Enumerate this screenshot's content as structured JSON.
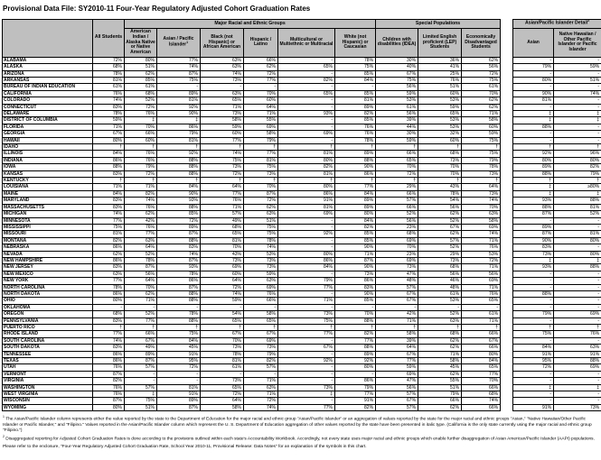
{
  "title": "Provisional Data File: SY2010-11 Four-Year Regulatory Adjusted Cohort Graduation Rates",
  "colors": {
    "header_bg": "#bfbfbf",
    "border": "#000000"
  },
  "table": {
    "all_students_label": "All Students",
    "group_headers": {
      "racial": "Major Racial and Ethnic Groups",
      "special": "Special Populations",
      "detail": "Asian/Pacific Islander Detail",
      "detail_sup": "2"
    },
    "columns": [
      {
        "key": "all",
        "label": "All Students"
      },
      {
        "key": "amind",
        "label": "American Indian / Alaska Native or Native American"
      },
      {
        "key": "asianpi",
        "label": "Asian / Pacific Islander",
        "sup": "1"
      },
      {
        "key": "black",
        "label": "Black (not Hispanic) or African American"
      },
      {
        "key": "hispanic",
        "label": "Hispanic / Latino"
      },
      {
        "key": "multi",
        "label": "Multicultural or Multiethnic or Multiracial"
      },
      {
        "key": "white",
        "label": "White (not Hispanic) or Caucasian"
      },
      {
        "key": "idea",
        "label": "Children with disabilities (IDEA)"
      },
      {
        "key": "lep",
        "label": "Limited English proficient (LEP) Students"
      },
      {
        "key": "econ",
        "label": "Economically Disadvantaged Students"
      },
      {
        "key": "asian",
        "label": "Asian"
      },
      {
        "key": "nhpi",
        "label": "Native Hawaiian / Other Pacific Islander or Pacific Islander"
      }
    ],
    "rows": [
      {
        "state": "ALABAMA",
        "values": [
          "72%",
          "80%",
          "77%",
          "63%",
          "66%",
          "-",
          "78%",
          "30%",
          "36%",
          "62%",
          "-",
          "-"
        ]
      },
      {
        "state": "ALASKA",
        "values": [
          "68%",
          "51%",
          "74%",
          "63%",
          "62%",
          "65%",
          "75%",
          "40%",
          "41%",
          "56%",
          "79%",
          "59%"
        ]
      },
      {
        "state": "ARIZONA",
        "values": [
          "78%",
          "62%",
          "87%",
          "74%",
          "72%",
          "-",
          "85%",
          "67%",
          "25%",
          "72%",
          "-",
          "-"
        ]
      },
      {
        "state": "ARKANSAS",
        "values": [
          "81%",
          "85%",
          "75%",
          "73%",
          "77%",
          "82%",
          "84%",
          "75%",
          "76%",
          "75%",
          "80%",
          "51%"
        ]
      },
      {
        "state": "BUREAU OF INDIAN EDUCATION",
        "values": [
          "61%",
          "61%",
          "-",
          "-",
          "-",
          "-",
          "-",
          "56%",
          "51%",
          "61%",
          "-",
          "-"
        ]
      },
      {
        "state": "CALIFORNIA",
        "values": [
          "76%",
          "68%",
          "89%",
          "63%",
          "70%",
          "65%",
          "85%",
          "59%",
          "60%",
          "70%",
          "90%",
          "74%"
        ]
      },
      {
        "state": "COLORADO",
        "values": [
          "74%",
          "52%",
          "81%",
          "65%",
          "60%",
          "-",
          "81%",
          "53%",
          "53%",
          "62%",
          "81%",
          "-"
        ]
      },
      {
        "state": "CONNECTICUT",
        "values": [
          "83%",
          "72%",
          "92%",
          "71%",
          "64%",
          "-",
          "89%",
          "61%",
          "59%",
          "62%",
          "-",
          "-"
        ]
      },
      {
        "state": "DELAWARE",
        "values": [
          "78%",
          "76%",
          "90%",
          "73%",
          "71%",
          "93%",
          "82%",
          "56%",
          "65%",
          "71%",
          "‡",
          "‡"
        ]
      },
      {
        "state": "DISTRICT OF COLUMBIA",
        "values": [
          "59%",
          "‡",
          "‡",
          "58%",
          "55%",
          "-",
          "85%",
          "39%",
          "53%",
          "58%",
          "‡",
          "‡"
        ]
      },
      {
        "state": "FLORIDA",
        "values": [
          "71%",
          "70%",
          "86%",
          "59%",
          "69%",
          "-",
          "76%",
          "44%",
          "53%",
          "60%",
          "88%",
          "-"
        ]
      },
      {
        "state": "GEORGIA",
        "values": [
          "67%",
          "66%",
          "79%",
          "60%",
          "58%",
          "69%",
          "76%",
          "30%",
          "32%",
          "59%",
          "-",
          "-"
        ]
      },
      {
        "state": "HAWAII",
        "values": [
          "80%",
          "60%",
          "81%",
          "77%",
          "79%",
          "-",
          "78%",
          "59%",
          "60%",
          "75%",
          "-",
          "-"
        ]
      },
      {
        "state": "IDAHO",
        "values": [
          "†",
          "†",
          "†",
          "†",
          "†",
          "†",
          "†",
          "†",
          "†",
          "†",
          "†",
          "†"
        ]
      },
      {
        "state": "ILLINOIS",
        "values": [
          "84%",
          "76%",
          "92%",
          "74%",
          "77%",
          "81%",
          "89%",
          "66%",
          "68%",
          "75%",
          "92%",
          "96%"
        ]
      },
      {
        "state": "INDIANA",
        "values": [
          "86%",
          "76%",
          "88%",
          "75%",
          "81%",
          "80%",
          "88%",
          "65%",
          "73%",
          "79%",
          "80%",
          "80%"
        ]
      },
      {
        "state": "IOWA",
        "values": [
          "88%",
          "79%",
          "88%",
          "73%",
          "75%",
          "82%",
          "90%",
          "70%",
          "70%",
          "78%",
          "89%",
          "82%"
        ]
      },
      {
        "state": "KANSAS",
        "values": [
          "83%",
          "72%",
          "88%",
          "72%",
          "73%",
          "81%",
          "86%",
          "72%",
          "70%",
          "73%",
          "88%",
          "79%"
        ]
      },
      {
        "state": "KENTUCKY",
        "values": [
          "†",
          "†",
          "†",
          "†",
          "†",
          "†",
          "†",
          "†",
          "†",
          "†",
          "†",
          "†"
        ]
      },
      {
        "state": "LOUISIANA",
        "values": [
          "71%",
          "71%",
          "84%",
          "64%",
          "70%",
          "80%",
          "77%",
          "29%",
          "43%",
          "64%",
          "‡",
          "≥80%"
        ]
      },
      {
        "state": "MAINE",
        "values": [
          "84%",
          "82%",
          "90%",
          "77%",
          "87%",
          "86%",
          "84%",
          "66%",
          "78%",
          "73%",
          "‡",
          "‡"
        ]
      },
      {
        "state": "MARYLAND",
        "values": [
          "83%",
          "74%",
          "93%",
          "76%",
          "72%",
          "91%",
          "89%",
          "57%",
          "54%",
          "74%",
          "93%",
          "88%"
        ]
      },
      {
        "state": "MASSACHUSETTS",
        "values": [
          "83%",
          "76%",
          "88%",
          "71%",
          "62%",
          "81%",
          "89%",
          "66%",
          "56%",
          "70%",
          "88%",
          "81%"
        ]
      },
      {
        "state": "MICHIGAN",
        "values": [
          "74%",
          "62%",
          "85%",
          "57%",
          "63%",
          "69%",
          "80%",
          "52%",
          "62%",
          "63%",
          "87%",
          "52%"
        ]
      },
      {
        "state": "MINNESOTA",
        "values": [
          "77%",
          "42%",
          "72%",
          "49%",
          "51%",
          "-",
          "84%",
          "56%",
          "52%",
          "58%",
          "-",
          "-"
        ]
      },
      {
        "state": "MISSISSIPPI",
        "values": [
          "75%",
          "76%",
          "89%",
          "68%",
          "75%",
          "-",
          "82%",
          "23%",
          "67%",
          "69%",
          "89%",
          "-"
        ]
      },
      {
        "state": "MISSOURI",
        "values": [
          "81%",
          "77%",
          "87%",
          "65%",
          "75%",
          "92%",
          "85%",
          "68%",
          "62%",
          "74%",
          "87%",
          "81%"
        ]
      },
      {
        "state": "MONTANA",
        "values": [
          "82%",
          "63%",
          "88%",
          "81%",
          "78%",
          "-",
          "85%",
          "69%",
          "57%",
          "71%",
          "90%",
          "80%"
        ]
      },
      {
        "state": "NEBRASKA",
        "values": [
          "86%",
          "64%",
          "83%",
          "70%",
          "74%",
          "-",
          "90%",
          "70%",
          "52%",
          "76%",
          "83%",
          "-"
        ]
      },
      {
        "state": "NEVADA",
        "values": [
          "62%",
          "52%",
          "74%",
          "43%",
          "53%",
          "80%",
          "71%",
          "23%",
          "29%",
          "53%",
          "73%",
          "80%"
        ]
      },
      {
        "state": "NEW HAMPSHIRE",
        "values": [
          "86%",
          "78%",
          "87%",
          "73%",
          "73%",
          "86%",
          "87%",
          "69%",
          "73%",
          "72%",
          "‡",
          "‡"
        ]
      },
      {
        "state": "NEW JERSEY",
        "values": [
          "83%",
          "87%",
          "93%",
          "69%",
          "73%",
          "84%",
          "90%",
          "73%",
          "68%",
          "71%",
          "93%",
          "88%"
        ]
      },
      {
        "state": "NEW MEXICO",
        "values": [
          "63%",
          "56%",
          "78%",
          "60%",
          "59%",
          "-",
          "73%",
          "47%",
          "56%",
          "56%",
          "-",
          "-"
        ]
      },
      {
        "state": "NEW YORK",
        "values": [
          "77%",
          "64%",
          "86%",
          "64%",
          "63%",
          "79%",
          "86%",
          "48%",
          "46%",
          "69%",
          "-",
          "-"
        ]
      },
      {
        "state": "NORTH CAROLINA",
        "values": [
          "78%",
          "70%",
          "87%",
          "72%",
          "69%",
          "77%",
          "83%",
          "57%",
          "48%",
          "71%",
          "-",
          "-"
        ]
      },
      {
        "state": "NORTH DAKOTA",
        "values": [
          "86%",
          "62%",
          "88%",
          "74%",
          "76%",
          "-",
          "90%",
          "67%",
          "61%",
          "76%",
          "88%",
          "-"
        ]
      },
      {
        "state": "OHIO",
        "values": [
          "80%",
          "71%",
          "88%",
          "59%",
          "66%",
          "71%",
          "85%",
          "67%",
          "53%",
          "65%",
          "-",
          "-"
        ]
      },
      {
        "state": "OKLAHOMA",
        "values": [
          "-",
          "-",
          "-",
          "-",
          "-",
          "-",
          "-",
          "-",
          "-",
          "-",
          "-",
          "-"
        ]
      },
      {
        "state": "OREGON",
        "values": [
          "68%",
          "52%",
          "78%",
          "54%",
          "58%",
          "73%",
          "70%",
          "42%",
          "52%",
          "61%",
          "79%",
          "69%"
        ]
      },
      {
        "state": "PENNSYLVANIA",
        "values": [
          "83%",
          "77%",
          "88%",
          "65%",
          "65%",
          "75%",
          "88%",
          "71%",
          "63%",
          "71%",
          "-",
          "-"
        ]
      },
      {
        "state": "PUERTO RICO",
        "values": [
          "†",
          "†",
          "†",
          "†",
          "†",
          "†",
          "†",
          "†",
          "†",
          "†",
          "†",
          "†"
        ]
      },
      {
        "state": "RHODE ISLAND",
        "values": [
          "77%",
          "66%",
          "75%",
          "67%",
          "67%",
          "77%",
          "82%",
          "58%",
          "68%",
          "66%",
          "75%",
          "76%"
        ]
      },
      {
        "state": "SOUTH CAROLINA",
        "values": [
          "74%",
          "67%",
          "84%",
          "70%",
          "69%",
          "-",
          "77%",
          "39%",
          "62%",
          "67%",
          "-",
          "-"
        ]
      },
      {
        "state": "SOUTH DAKOTA",
        "values": [
          "83%",
          "49%",
          "45%",
          "73%",
          "73%",
          "67%",
          "88%",
          "64%",
          "62%",
          "66%",
          "84%",
          "63%"
        ]
      },
      {
        "state": "TENNESSEE",
        "values": [
          "86%",
          "89%",
          "91%",
          "78%",
          "79%",
          "-",
          "89%",
          "67%",
          "71%",
          "80%",
          "91%",
          "91%"
        ]
      },
      {
        "state": "TEXAS",
        "values": [
          "86%",
          "87%",
          "95%",
          "81%",
          "82%",
          "92%",
          "92%",
          "77%",
          "58%",
          "84%",
          "95%",
          "88%"
        ]
      },
      {
        "state": "UTAH",
        "values": [
          "76%",
          "57%",
          "72%",
          "61%",
          "57%",
          "-",
          "80%",
          "59%",
          "45%",
          "65%",
          "72%",
          "69%"
        ]
      },
      {
        "state": "VERMONT",
        "values": [
          "87%",
          "-",
          "-",
          "-",
          "-",
          "-",
          "-",
          "69%",
          "62%",
          "77%",
          "-",
          "-"
        ]
      },
      {
        "state": "VIRGINIA",
        "values": [
          "82%",
          "-",
          "-",
          "73%",
          "71%",
          "-",
          "86%",
          "47%",
          "55%",
          "70%",
          "-",
          "-"
        ]
      },
      {
        "state": "WASHINGTON",
        "values": [
          "76%",
          "57%",
          "81%",
          "65%",
          "63%",
          "73%",
          "79%",
          "56%",
          "51%",
          "66%",
          "‡",
          "‡"
        ]
      },
      {
        "state": "WEST VIRGINIA",
        "values": [
          "76%",
          "‡",
          "91%",
          "72%",
          "71%",
          "‡",
          "77%",
          "57%",
          "79%",
          "68%",
          "-",
          "-"
        ]
      },
      {
        "state": "WISCONSIN",
        "values": [
          "87%",
          "75%",
          "89%",
          "64%",
          "72%",
          "-",
          "91%",
          "67%",
          "66%",
          "74%",
          "-",
          "-"
        ]
      },
      {
        "state": "WYOMING",
        "values": [
          "80%",
          "51%",
          "87%",
          "58%",
          "74%",
          "77%",
          "82%",
          "57%",
          "62%",
          "66%",
          "91%",
          "73%"
        ]
      }
    ]
  },
  "footnotes": {
    "f1_sup": "1",
    "f1": "The Asian/Pacific Islander column represents either the value reported by the state to the Department of Education for the major racial and ethnic group \"Asian/Pacific Islander\" or an aggregation of values reported by the state for the major racial and ethnic groups \"Asian,\" \"Native Hawaiian/Other Pacific Islander or Pacific Islander,\" and \"Filipino.\"  Values reported in the Asian/Pacific Islander column which represent the U. S. Department of Education aggregation of other values reported by the state have been presented in italic type.  (California is the only state currently using the major racial and ethnic group \"Filipino.\")",
    "f2_sup": "2",
    "f2": "Disaggregated reporting for Adjusted Cohort Graduation Rates is done according to the provisions outlined within each state's Accountability Workbook.  Accordingly, not every state uses major racial and ethnic groups which enable further disaggregation of Asian American/Pacific Islander (AAPI) populations.",
    "f3": "Please refer to the enclosure, \"Four-Year Regulatory Adjusted Cohort Graduation Rate, School Year 2010-11, Provisional Release:  Data Notes\" for an explanation of the symbols in this chart."
  }
}
